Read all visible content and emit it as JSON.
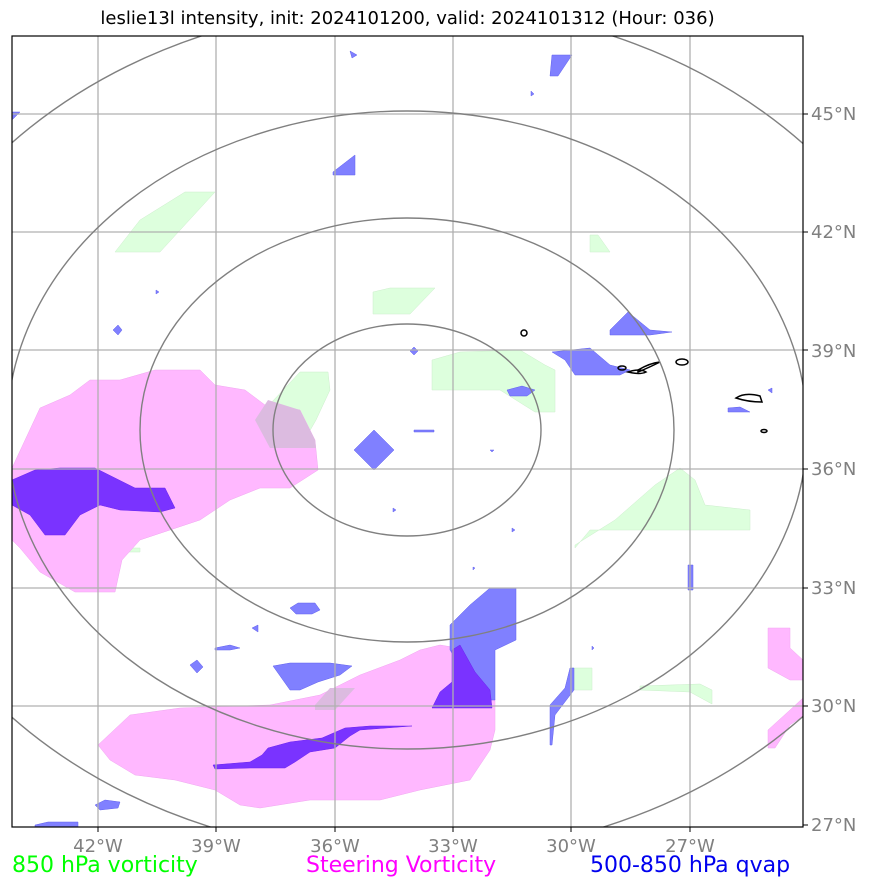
{
  "title": "leslie13l intensity, init: 2024101200, valid: 2024101312 (Hour: 036)",
  "axes": {
    "lon_ticks": [
      "42°W",
      "39°W",
      "36°W",
      "33°W",
      "30°W",
      "27°W"
    ],
    "lat_ticks": [
      "45°N",
      "42°N",
      "39°N",
      "36°N",
      "33°N",
      "30°N",
      "27°N"
    ]
  },
  "legend": {
    "vorticity_850": "850 hPa vorticity",
    "steering_vorticity": "Steering Vorticity",
    "qvap_500_850": "500-850 hPa qvap"
  },
  "colors": {
    "vorticity_850": "#00ff00",
    "steering_vorticity": "#ff00ff",
    "qvap_500_850": "#0000ee",
    "range_rings": "#808080",
    "grid": "#b0b0b0"
  }
}
